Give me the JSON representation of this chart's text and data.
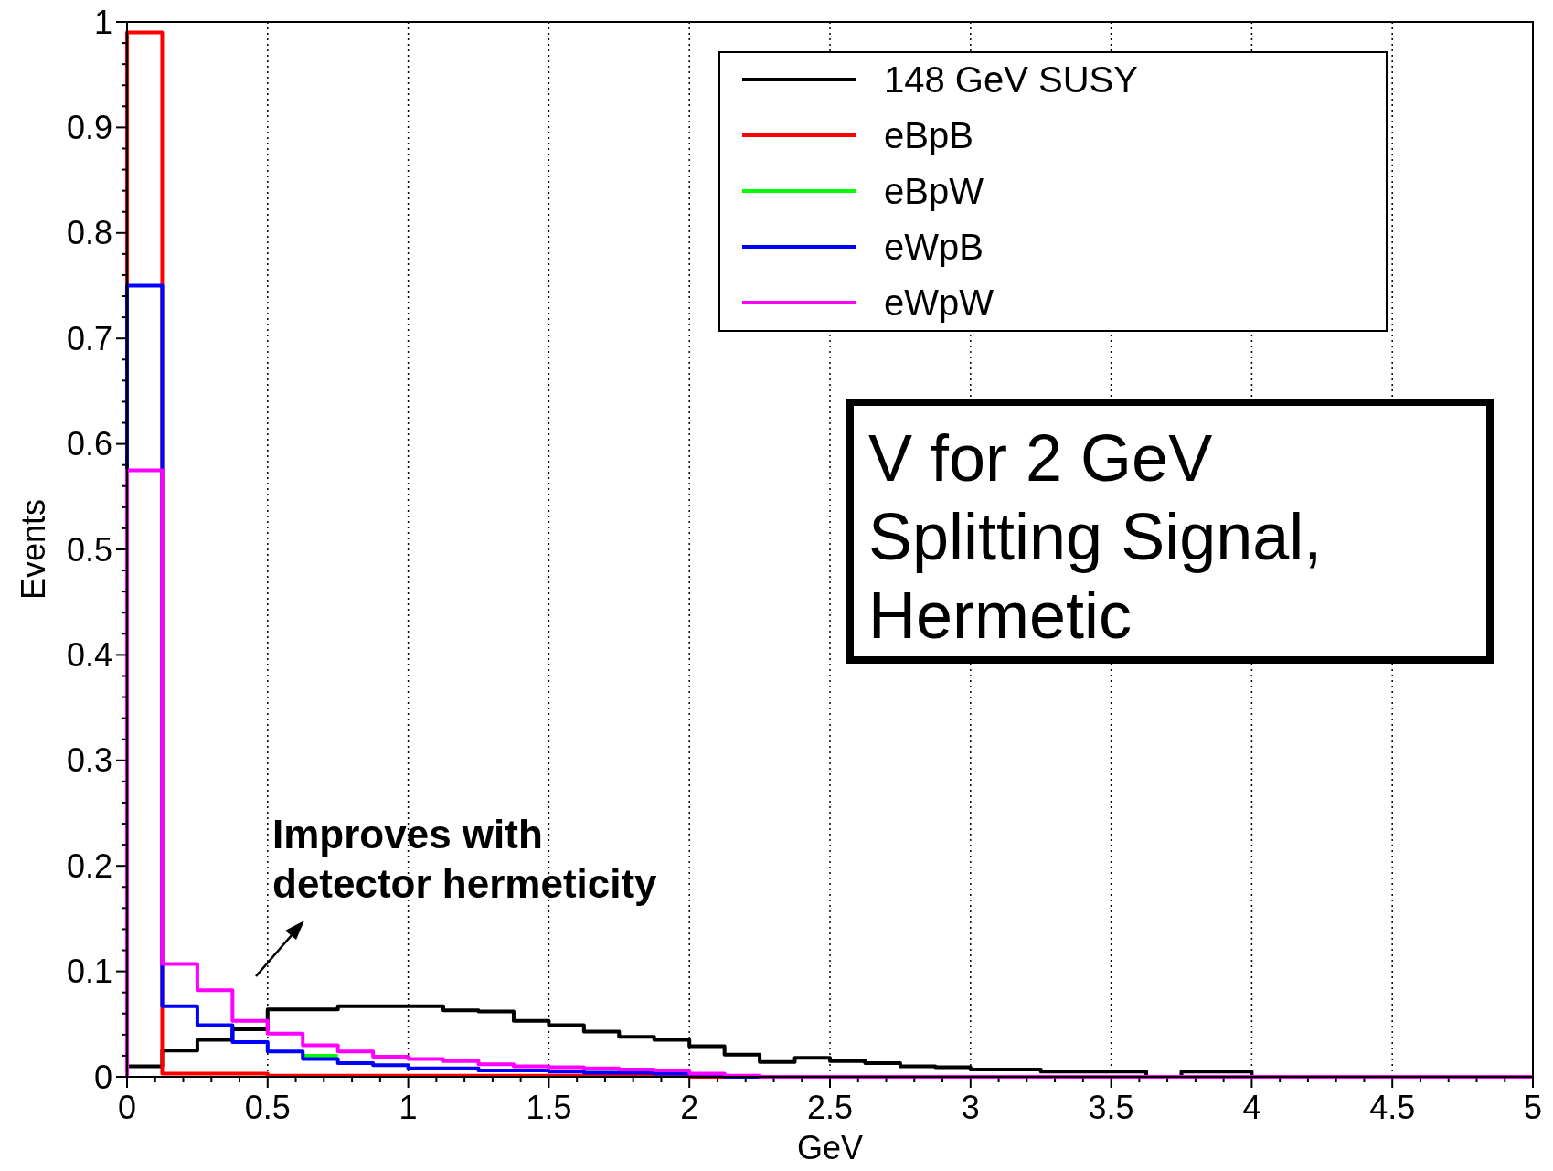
{
  "chart_data": {
    "type": "histogram",
    "xlabel": "GeV",
    "ylabel": "Events",
    "bins": [
      0,
      0.125,
      0.25,
      0.375,
      0.5,
      0.625,
      0.75,
      0.875,
      1,
      1.125,
      1.25,
      1.375,
      1.5,
      1.625,
      1.75,
      1.875,
      2,
      2.125,
      2.25,
      2.375,
      2.5,
      2.625,
      2.75,
      2.875,
      3,
      3.125,
      3.25,
      3.375,
      3.5,
      3.625,
      3.75,
      3.875,
      4,
      4.125,
      4.25,
      4.375,
      4.5,
      4.625,
      4.75,
      4.875,
      5
    ],
    "series": [
      {
        "name": "148 GeV SUSY",
        "color": "#000000",
        "values": [
          0.01,
          0.025,
          0.035,
          0.045,
          0.064,
          0.064,
          0.067,
          0.067,
          0.067,
          0.063,
          0.062,
          0.053,
          0.049,
          0.043,
          0.038,
          0.035,
          0.029,
          0.021,
          0.014,
          0.018,
          0.015,
          0.013,
          0.01,
          0.009,
          0.007,
          0.007,
          0.005,
          0.005,
          0.005,
          0,
          0.005,
          0.005,
          0,
          0,
          0,
          0,
          0,
          0,
          0,
          0
        ]
      },
      {
        "name": "eBpB",
        "color": "#ff0000",
        "values": [
          0.99,
          0.003,
          0.003,
          0.003,
          0.001,
          0.001,
          0.001,
          0.001,
          0.001,
          0.001,
          0.001,
          0.001,
          0.001,
          0.001,
          0.001,
          0.001,
          0,
          0,
          0,
          0,
          0,
          0,
          0,
          0,
          0,
          0,
          0,
          0,
          0,
          0,
          0,
          0,
          0,
          0,
          0,
          0,
          0,
          0,
          0,
          0
        ]
      },
      {
        "name": "eBpW",
        "color": "#00ff00",
        "type": "line",
        "x": [
          0.625,
          0.75
        ],
        "values": [
          0.02,
          0.02
        ]
      },
      {
        "name": "eWpB",
        "color": "#0000ff",
        "values": [
          0.75,
          0.067,
          0.049,
          0.033,
          0.024,
          0.017,
          0.013,
          0.011,
          0.008,
          0.008,
          0.006,
          0.006,
          0.005,
          0.004,
          0.004,
          0.003,
          0.002,
          0,
          0,
          0,
          0,
          0,
          0,
          0,
          0,
          0,
          0,
          0,
          0,
          0,
          0,
          0,
          0,
          0,
          0,
          0,
          0,
          0,
          0,
          0
        ]
      },
      {
        "name": "eWpW",
        "color": "#ff00ff",
        "values": [
          0.575,
          0.107,
          0.082,
          0.053,
          0.041,
          0.03,
          0.024,
          0.019,
          0.017,
          0.015,
          0.012,
          0.01,
          0.009,
          0.008,
          0.007,
          0.006,
          0.003,
          0.001,
          0,
          0,
          0,
          0,
          0,
          0,
          0,
          0,
          0,
          0,
          0,
          0,
          0,
          0,
          0,
          0,
          0,
          0,
          0,
          0,
          0,
          0
        ]
      }
    ],
    "xlim": [
      0,
      5
    ],
    "xticks": [
      0,
      {
        "value": 0.1,
        "label": null
      },
      {
        "value": 0.2,
        "label": null
      },
      {
        "value": 0.3,
        "label": null
      },
      {
        "value": 0.4,
        "label": null
      },
      0.5,
      {
        "value": 0.6,
        "label": null
      },
      {
        "value": 0.7,
        "label": null
      },
      {
        "value": 0.8,
        "label": null
      },
      {
        "value": 0.9,
        "label": null
      },
      1,
      {
        "value": 1.1,
        "label": null
      },
      {
        "value": 1.2,
        "label": null
      },
      {
        "value": 1.3,
        "label": null
      },
      {
        "value": 1.4,
        "label": null
      },
      1.5,
      {
        "value": 1.6,
        "label": null
      },
      {
        "value": 1.7,
        "label": null
      },
      {
        "value": 1.8,
        "label": null
      },
      {
        "value": 1.9,
        "label": null
      },
      2,
      {
        "value": 2.1,
        "label": null
      },
      {
        "value": 2.2,
        "label": null
      },
      {
        "value": 2.3,
        "label": null
      },
      {
        "value": 2.4,
        "label": null
      },
      2.5,
      {
        "value": 2.6,
        "label": null
      },
      {
        "value": 2.7,
        "label": null
      },
      {
        "value": 2.8,
        "label": null
      },
      {
        "value": 2.9,
        "label": null
      },
      3,
      {
        "value": 3.1,
        "label": null
      },
      {
        "value": 3.2,
        "label": null
      },
      {
        "value": 3.3,
        "label": null
      },
      {
        "value": 3.4,
        "label": null
      },
      3.5,
      {
        "value": 3.6,
        "label": null
      },
      {
        "value": 3.7,
        "label": null
      },
      {
        "value": 3.8,
        "label": null
      },
      {
        "value": 3.9,
        "label": null
      },
      4,
      {
        "value": 4.1,
        "label": null
      },
      {
        "value": 4.2,
        "label": null
      },
      {
        "value": 4.3,
        "label": null
      },
      {
        "value": 4.4,
        "label": null
      },
      4.5,
      {
        "value": 4.6,
        "label": null
      },
      {
        "value": 4.7,
        "label": null
      },
      {
        "value": 4.8,
        "label": null
      },
      {
        "value": 4.9,
        "label": null
      },
      5
    ],
    "ylim": [
      0,
      1
    ],
    "yticks": [
      0,
      {
        "value": 0.02,
        "label": null
      },
      {
        "value": 0.04,
        "label": null
      },
      {
        "value": 0.06,
        "label": null
      },
      {
        "value": 0.08,
        "label": null
      },
      0.1,
      {
        "value": 0.12,
        "label": null
      },
      {
        "value": 0.14,
        "label": null
      },
      {
        "value": 0.16,
        "label": null
      },
      {
        "value": 0.18,
        "label": null
      },
      0.2,
      {
        "value": 0.22,
        "label": null
      },
      {
        "value": 0.24,
        "label": null
      },
      {
        "value": 0.26,
        "label": null
      },
      {
        "value": 0.28,
        "label": null
      },
      0.3,
      {
        "value": 0.32,
        "label": null
      },
      {
        "value": 0.34,
        "label": null
      },
      {
        "value": 0.36,
        "label": null
      },
      {
        "value": 0.38,
        "label": null
      },
      0.4,
      {
        "value": 0.42,
        "label": null
      },
      {
        "value": 0.44,
        "label": null
      },
      {
        "value": 0.46,
        "label": null
      },
      {
        "value": 0.48,
        "label": null
      },
      0.5,
      {
        "value": 0.52,
        "label": null
      },
      {
        "value": 0.54,
        "label": null
      },
      {
        "value": 0.56,
        "label": null
      },
      {
        "value": 0.58,
        "label": null
      },
      0.6,
      {
        "value": 0.62,
        "label": null
      },
      {
        "value": 0.64,
        "label": null
      },
      {
        "value": 0.66,
        "label": null
      },
      {
        "value": 0.68,
        "label": null
      },
      0.7,
      {
        "value": 0.72,
        "label": null
      },
      {
        "value": 0.74,
        "label": null
      },
      {
        "value": 0.76,
        "label": null
      },
      {
        "value": 0.78,
        "label": null
      },
      0.8,
      {
        "value": 0.82,
        "label": null
      },
      {
        "value": 0.84,
        "label": null
      },
      {
        "value": 0.86,
        "label": null
      },
      {
        "value": 0.88,
        "label": null
      },
      0.9,
      {
        "value": 0.92,
        "label": null
      },
      {
        "value": 0.94,
        "label": null
      },
      {
        "value": 0.96,
        "label": null
      },
      {
        "value": 0.98,
        "label": null
      },
      1
    ],
    "grid": "x",
    "legend": "top right",
    "annotations": [
      "V for 2 GeV\nSplitting Signal,\nHermetic",
      "Improves with\ndetector hermeticity"
    ]
  }
}
